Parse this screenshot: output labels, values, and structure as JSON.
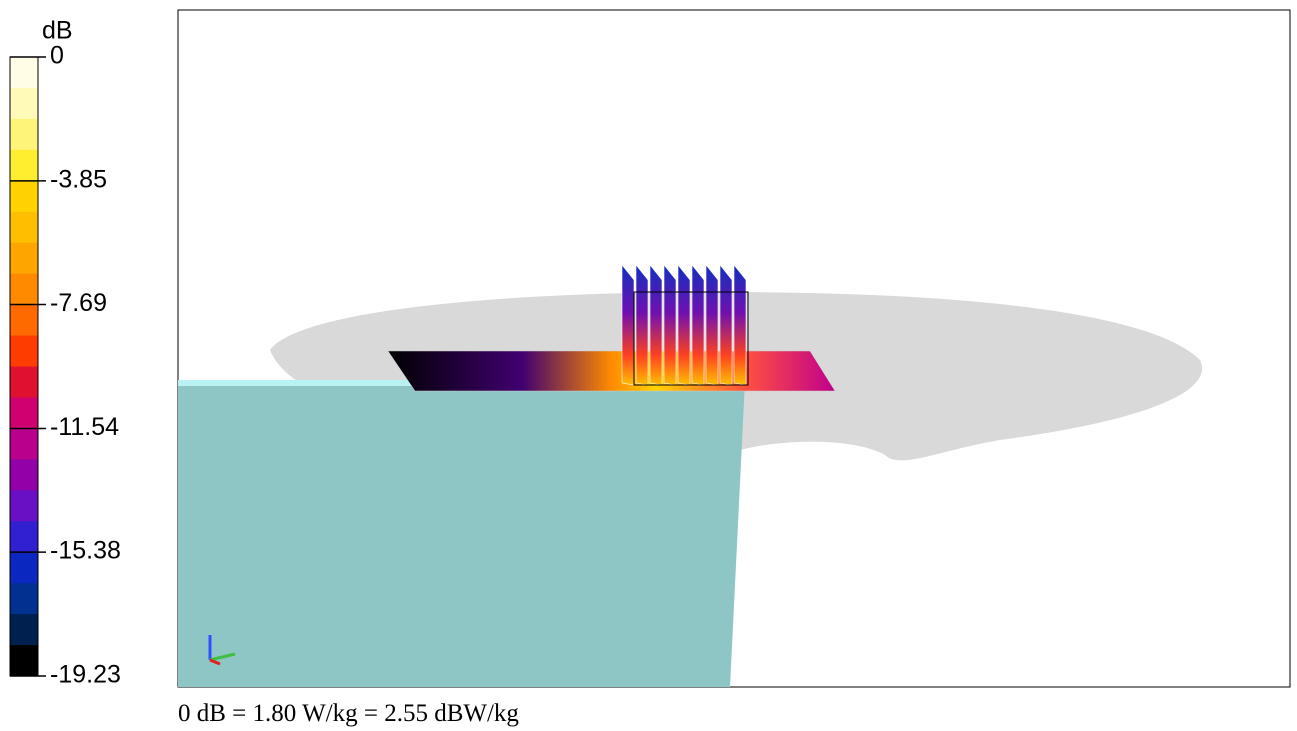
{
  "colorbar": {
    "unit": "dB",
    "lim": [
      -19.23,
      0
    ],
    "ticks": [
      0,
      -3.85,
      -7.69,
      -11.54,
      -15.38,
      -19.23
    ],
    "colors": [
      "#fffde6",
      "#fffab8",
      "#fff47a",
      "#ffee30",
      "#ffd200",
      "#ffbf00",
      "#ffa500",
      "#ff8a00",
      "#ff6a00",
      "#ff3c00",
      "#e01030",
      "#d00070",
      "#b8008c",
      "#9400a8",
      "#6a10c4",
      "#3020d0",
      "#0a28c0",
      "#003090",
      "#002050",
      "#000000"
    ]
  },
  "footer": "0 dB = 1.80 W/kg = 2.55 dBW/kg"
}
